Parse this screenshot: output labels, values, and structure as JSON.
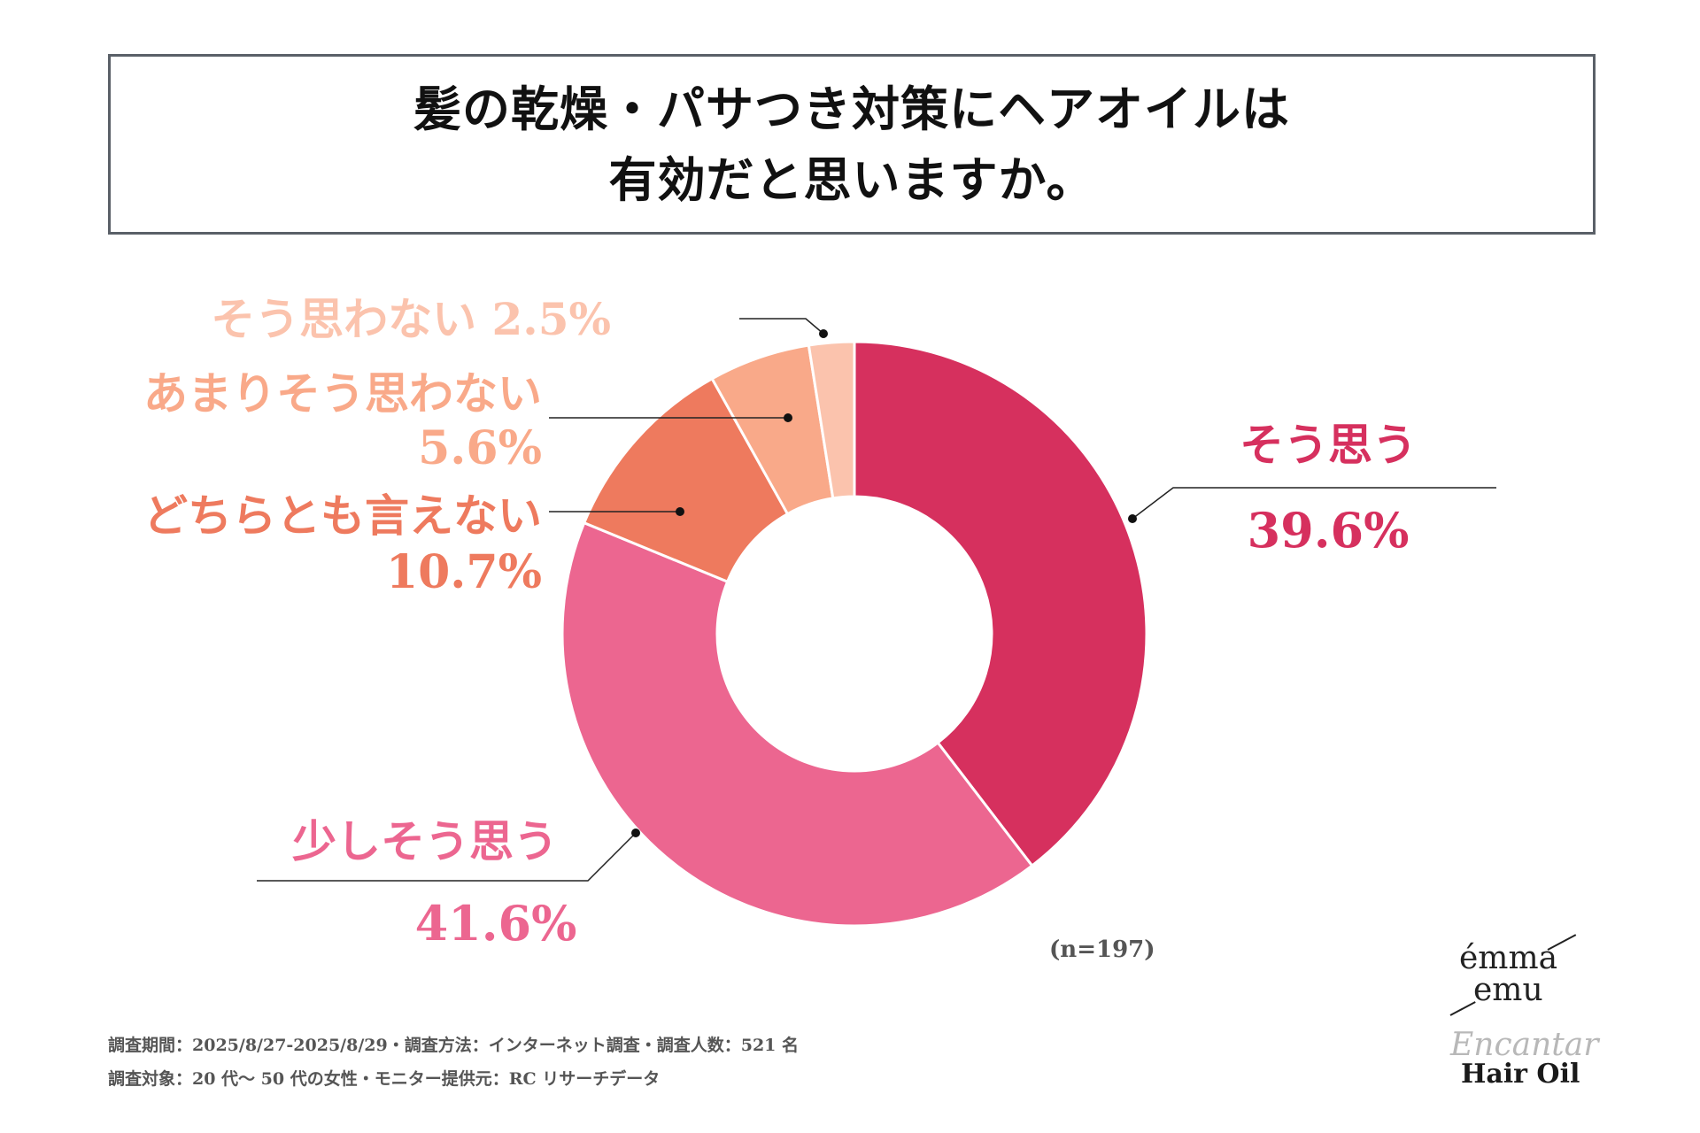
{
  "title": {
    "line1": "髪の乾燥・パサつき対策にヘアオイルは",
    "line2": "有効だと思いますか。"
  },
  "chart_data": {
    "type": "pie",
    "subtype": "donut",
    "categories": [
      "そう思う",
      "少しそう思う",
      "どちらとも言えない",
      "あまりそう思わない",
      "そう思わない"
    ],
    "values": [
      39.6,
      41.6,
      10.7,
      5.6,
      2.5
    ],
    "value_labels": [
      "39.6%",
      "41.6%",
      "10.7%",
      "5.6%",
      "2.5%"
    ],
    "colors": [
      "#d6305e",
      "#ec6690",
      "#ee7a5e",
      "#f9a989",
      "#fbc3ad"
    ],
    "start": "top, clockwise"
  },
  "sample_size": "(n=197)",
  "footnotes": [
    "調査期間：2025/8/27-2025/8/29・調査方法：インターネット調査・調査人数：521 名",
    "調査対象：20 代～ 50 代の女性・モニター提供元：RC リサーチデータ"
  ],
  "brand": {
    "name_line1": "émma",
    "name_line2": "emu",
    "script": "Encantar",
    "product": "Hair Oil"
  }
}
